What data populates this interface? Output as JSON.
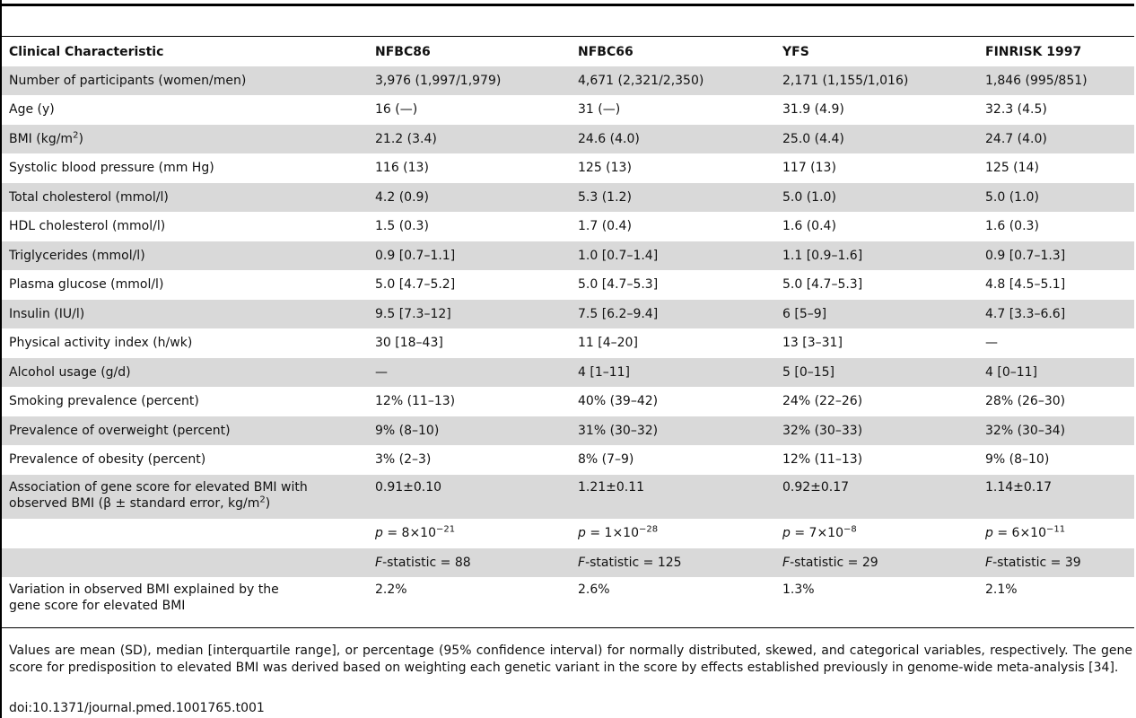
{
  "table": {
    "headers": [
      "Clinical Characteristic",
      "NFBC86",
      "NFBC66",
      "YFS",
      "FINRISK 1997"
    ],
    "rows": [
      [
        "Number of participants (women/men)",
        "3,976 (1,997/1,979)",
        "4,671 (2,321/2,350)",
        "2,171 (1,155/1,016)",
        "1,846 (995/851)"
      ],
      [
        "Age (y)",
        "16 (—)",
        "31 (—)",
        "31.9 (4.9)",
        "32.3 (4.5)"
      ],
      [
        "BMI (kg/m",
        "21.2 (3.4)",
        "24.6 (4.0)",
        "25.0 (4.4)",
        "24.7 (4.0)"
      ],
      [
        "Systolic blood pressure (mm Hg)",
        "116 (13)",
        "125 (13)",
        "117 (13)",
        "125 (14)"
      ],
      [
        "Total cholesterol (mmol/l)",
        "4.2 (0.9)",
        "5.3 (1.2)",
        "5.0 (1.0)",
        "5.0 (1.0)"
      ],
      [
        "HDL cholesterol (mmol/l)",
        "1.5 (0.3)",
        "1.7 (0.4)",
        "1.6 (0.4)",
        "1.6 (0.3)"
      ],
      [
        "Triglycerides (mmol/l)",
        "0.9 [0.7–1.1]",
        "1.0 [0.7–1.4]",
        "1.1 [0.9–1.6]",
        "0.9 [0.7–1.3]"
      ],
      [
        "Plasma glucose (mmol/l)",
        "5.0 [4.7–5.2]",
        "5.0 [4.7–5.3]",
        "5.0 [4.7–5.3]",
        "4.8 [4.5–5.1]"
      ],
      [
        "Insulin (IU/l)",
        "9.5 [7.3–12]",
        "7.5 [6.2–9.4]",
        "6 [5–9]",
        "4.7 [3.3–6.6]"
      ],
      [
        "Physical activity index (h/wk)",
        "30 [18–43]",
        "11 [4–20]",
        "13 [3–31]",
        "—"
      ],
      [
        "Alcohol usage (g/d)",
        "—",
        "4 [1–11]",
        "5 [0–15]",
        "4 [0–11]"
      ],
      [
        "Smoking prevalence (percent)",
        "12% (11–13)",
        "40% (39–42)",
        "24% (22–26)",
        "28% (26–30)"
      ],
      [
        "Prevalence of overweight (percent)",
        "9% (8–10)",
        "31% (30–32)",
        "32% (30–33)",
        "32% (30–34)"
      ],
      [
        "Prevalence of obesity (percent)",
        "3% (2–3)",
        "8% (7–9)",
        "12% (11–13)",
        "9% (8–10)"
      ]
    ],
    "bmi_label_close": ")",
    "bmi_sup": "2",
    "assoc": {
      "label_line1": "Association of gene score for elevated BMI with",
      "label_line2": "observed BMI (β ± standard error, kg/m",
      "label_sup": "2",
      "label_close": ")",
      "values": [
        "0.91±0.10",
        "1.21±0.11",
        "0.92±0.17",
        "1.14±0.17"
      ]
    },
    "pvalues": {
      "prefix": "p",
      "eq": " = ",
      "mantissas": [
        "8×10",
        "1×10",
        "7×10",
        "6×10"
      ],
      "exponents": [
        "−21",
        "−28",
        "−8",
        "−11"
      ]
    },
    "fstats": {
      "prefix": "F",
      "suffix": "-statistic = ",
      "values": [
        "88",
        "125",
        "29",
        "39"
      ]
    },
    "variation": {
      "label_line1": "Variation in observed BMI explained by the",
      "label_line2": "gene score for elevated BMI",
      "values": [
        "2.2%",
        "2.6%",
        "1.3%",
        "2.1%"
      ]
    }
  },
  "footnote": "Values are mean (SD), median [interquartile range], or percentage (95% confidence interval) for normally distributed, skewed, and categorical variables, respectively. The gene score for predisposition to elevated BMI was derived based on weighting each genetic variant in the score by effects established previously in genome-wide meta-analysis [34].",
  "doi": "doi:10.1371/journal.pmed.1001765.t001"
}
